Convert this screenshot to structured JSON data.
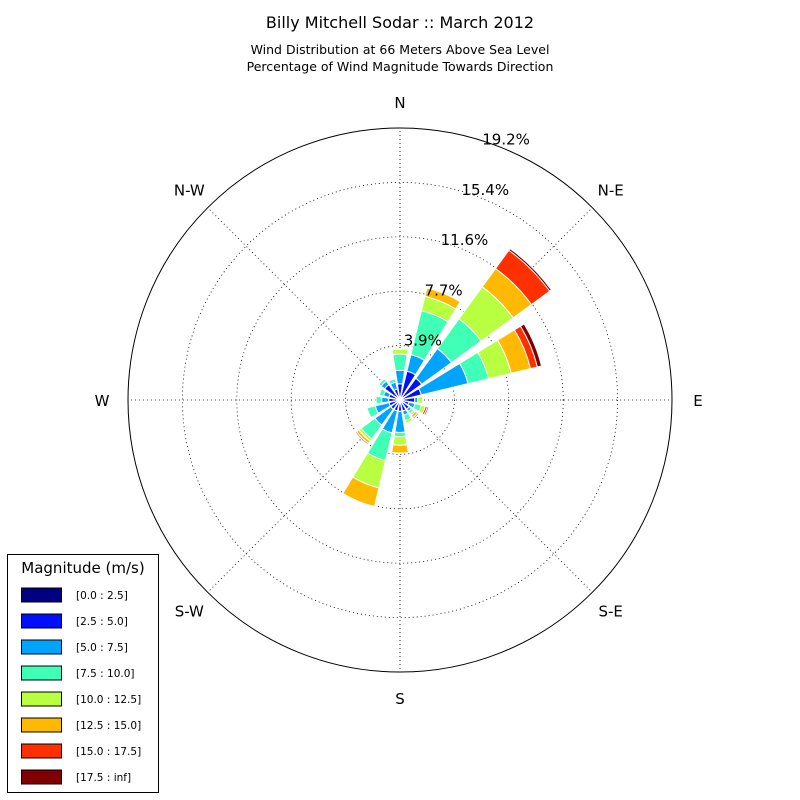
{
  "chart_data": {
    "type": "windrose",
    "title": "Billy Mitchell Sodar :: March 2012",
    "subtitle_lines": [
      "Wind Distribution at 66 Meters Above Sea Level",
      "Percentage of Wind Magnitude Towards Direction"
    ],
    "directions": [
      "N",
      "NNE",
      "NE",
      "ENE",
      "E",
      "ESE",
      "SE",
      "SSE",
      "S",
      "SSW",
      "SW",
      "WSW",
      "W",
      "WNW",
      "NW",
      "NNW"
    ],
    "direction_labels": [
      {
        "angle": 0,
        "label": "N"
      },
      {
        "angle": 45,
        "label": "N-E"
      },
      {
        "angle": 90,
        "label": "E"
      },
      {
        "angle": 135,
        "label": "S-E"
      },
      {
        "angle": 180,
        "label": "S"
      },
      {
        "angle": 225,
        "label": "S-W"
      },
      {
        "angle": 270,
        "label": "W"
      },
      {
        "angle": 315,
        "label": "N-W"
      }
    ],
    "radial_ticks": [
      "3.9%",
      "7.7%",
      "11.6%",
      "15.4%",
      "19.2%"
    ],
    "radial_tick_values": [
      3.85,
      7.7,
      11.55,
      15.4,
      19.25
    ],
    "r_max": 19.25,
    "legend_title": "Magnitude (m/s)",
    "legend_position": "lower-left",
    "series": [
      {
        "name": "[0.0 : 2.5]",
        "color": "#000080",
        "values": [
          0.15,
          0.2,
          0.25,
          0.2,
          0.2,
          0.15,
          0.15,
          0.15,
          0.15,
          0.15,
          0.15,
          0.15,
          0.15,
          0.15,
          0.15,
          0.15
        ]
      },
      {
        "name": "[2.5 : 5.0]",
        "color": "#0010ff",
        "values": [
          1.0,
          1.9,
          1.65,
          1.35,
          0.85,
          0.5,
          0.65,
          0.65,
          0.65,
          0.65,
          0.65,
          0.65,
          0.65,
          0.65,
          1.2,
          0.65
        ]
      },
      {
        "name": "[5.0 : 7.5]",
        "color": "#00a4ff",
        "values": [
          0.95,
          1.2,
          2.6,
          3.4,
          0.2,
          0.45,
          0.2,
          0.3,
          1.5,
          1.6,
          1.4,
          1.0,
          0.5,
          0.4,
          0.3,
          0.5
        ]
      },
      {
        "name": "[7.5 : 10.0]",
        "color": "#40ffb7",
        "values": [
          1.15,
          3.2,
          2.6,
          1.5,
          0,
          0.45,
          0.2,
          0.4,
          0.3,
          2.0,
          1.2,
          0.6,
          0.4,
          0.3,
          0.2,
          0.25
        ]
      },
      {
        "name": "[10.0 : 12.5]",
        "color": "#b7ff40",
        "values": [
          0.35,
          1.05,
          2.8,
          1.65,
          0.35,
          0.3,
          0.15,
          0.2,
          0.6,
          2.0,
          0.2,
          0,
          0,
          0,
          0,
          0
        ]
      },
      {
        "name": "[12.5 : 15.0]",
        "color": "#ffb900",
        "values": [
          0,
          0.6,
          1.6,
          1.4,
          0,
          0,
          0.2,
          0,
          0.55,
          1.35,
          0.2,
          0,
          0,
          0,
          0,
          0
        ]
      },
      {
        "name": "[15.0 : 17.5]",
        "color": "#ff3000",
        "values": [
          0,
          0,
          1.6,
          0.5,
          0,
          0.15,
          0.1,
          0,
          0,
          0,
          0.1,
          0,
          0,
          0,
          0,
          0
        ]
      },
      {
        "name": "[17.5 : inf]",
        "color": "#800000",
        "values": [
          0,
          0,
          0.15,
          0.3,
          0,
          0.1,
          0,
          0,
          0,
          0,
          0,
          0,
          0,
          0,
          0,
          0
        ]
      }
    ]
  }
}
